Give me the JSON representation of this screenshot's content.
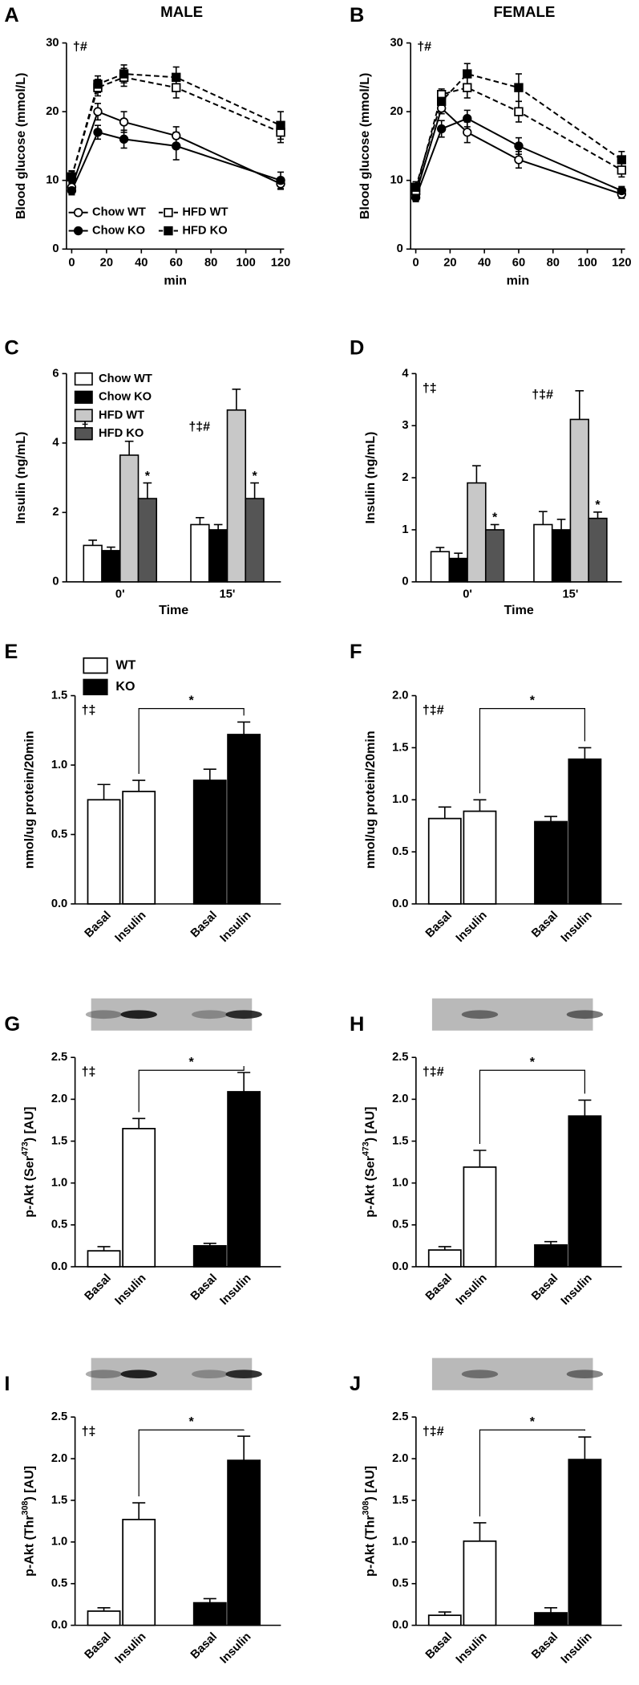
{
  "chart_data": [
    {
      "type": "line",
      "panel_label": "A",
      "title": "MALE",
      "ylabel": "Blood glucose (mmol/L)",
      "xlabel": "min",
      "annotation": "†#",
      "x": [
        0,
        15,
        30,
        60,
        120
      ],
      "xlim": [
        -3,
        122
      ],
      "xticks": [
        0,
        20,
        40,
        60,
        80,
        100,
        120
      ],
      "ylim": [
        0,
        30
      ],
      "yticks": [
        0,
        10,
        20,
        30
      ],
      "legend": "lower center",
      "series": [
        {
          "name": "Chow WT",
          "color": "#000000",
          "marker": "circle",
          "filled": false,
          "line_style": "solid",
          "values": [
            9,
            20,
            18.5,
            16.5,
            9.5
          ],
          "errors": [
            0.8,
            1.2,
            1.5,
            1.3,
            0.8
          ]
        },
        {
          "name": "Chow KO",
          "color": "#000000",
          "marker": "circle",
          "filled": true,
          "line_style": "solid",
          "values": [
            8.5,
            17,
            16,
            15,
            10
          ],
          "errors": [
            0.6,
            1.0,
            1.3,
            2.0,
            1.2
          ]
        },
        {
          "name": "HFD WT",
          "color": "#000000",
          "marker": "square",
          "filled": false,
          "line_style": "dashed",
          "values": [
            10.5,
            23.5,
            25,
            23.5,
            17
          ],
          "errors": [
            0.9,
            1.2,
            1.3,
            1.5,
            1.5
          ]
        },
        {
          "name": "HFD KO",
          "color": "#000000",
          "marker": "square",
          "filled": true,
          "line_style": "dashed",
          "values": [
            10.5,
            24,
            25.5,
            25,
            18
          ],
          "errors": [
            0.8,
            1.2,
            1.3,
            1.5,
            2.0
          ]
        }
      ]
    },
    {
      "type": "line",
      "panel_label": "B",
      "title": "FEMALE",
      "ylabel": "Blood glucose (mmol/L)",
      "xlabel": "min",
      "annotation": "†#",
      "x": [
        0,
        15,
        30,
        60,
        120
      ],
      "xlim": [
        -3,
        122
      ],
      "xticks": [
        0,
        20,
        40,
        60,
        80,
        100,
        120
      ],
      "ylim": [
        0,
        30
      ],
      "yticks": [
        0,
        10,
        20,
        30
      ],
      "series": [
        {
          "name": "Chow WT",
          "color": "#000000",
          "marker": "circle",
          "filled": false,
          "line_style": "solid",
          "values": [
            8,
            20.5,
            17,
            13,
            8
          ],
          "errors": [
            0.8,
            0.8,
            1.5,
            1.2,
            0.6
          ]
        },
        {
          "name": "Chow KO",
          "color": "#000000",
          "marker": "circle",
          "filled": true,
          "line_style": "solid",
          "values": [
            7.5,
            17.5,
            19,
            15,
            8.5
          ],
          "errors": [
            0.6,
            1.2,
            1.2,
            1.2,
            0.6
          ]
        },
        {
          "name": "HFD WT",
          "color": "#000000",
          "marker": "square",
          "filled": false,
          "line_style": "dashed",
          "values": [
            8.5,
            22.5,
            23.5,
            20,
            11.5
          ],
          "errors": [
            0.6,
            0.8,
            1.5,
            1.5,
            1.0
          ]
        },
        {
          "name": "HFD KO",
          "color": "#000000",
          "marker": "square",
          "filled": true,
          "line_style": "dashed",
          "values": [
            9,
            21.5,
            25.5,
            23.5,
            13
          ],
          "errors": [
            0.8,
            1.0,
            1.5,
            2.0,
            1.2
          ]
        }
      ]
    },
    {
      "type": "grouped_bar",
      "panel_label": "C",
      "ylabel": "Insulin (ng/mL)",
      "xlabel": "Time",
      "categories": [
        "0'",
        "15'"
      ],
      "category_annotations": [
        "†",
        "†‡#"
      ],
      "ylim": [
        0,
        6
      ],
      "yticks": [
        0,
        2,
        4,
        6
      ],
      "legend": "upper left",
      "series": [
        {
          "name": "Chow WT",
          "color": "#ffffff",
          "values": [
            1.05,
            1.65
          ],
          "errors": [
            0.15,
            0.2
          ]
        },
        {
          "name": "Chow KO",
          "color": "#000000",
          "values": [
            0.9,
            1.5
          ],
          "errors": [
            0.1,
            0.15
          ]
        },
        {
          "name": "HFD WT",
          "color": "#c8c8c8",
          "values": [
            3.65,
            4.95
          ],
          "errors": [
            0.4,
            0.6
          ]
        },
        {
          "name": "HFD KO",
          "color": "#555555",
          "values": [
            2.4,
            2.4
          ],
          "errors": [
            0.45,
            0.45
          ],
          "significance_marks": [
            "*",
            "*"
          ]
        }
      ]
    },
    {
      "type": "grouped_bar",
      "panel_label": "D",
      "ylabel": "Insulin (ng/mL)",
      "xlabel": "Time",
      "annotation": "†‡",
      "categories": [
        "0'",
        "15'"
      ],
      "category_annotations": [
        null,
        "†‡#"
      ],
      "ylim": [
        0,
        4
      ],
      "yticks": [
        0,
        1,
        2,
        3,
        4
      ],
      "series": [
        {
          "name": "Chow WT",
          "color": "#ffffff",
          "values": [
            0.58,
            1.1
          ],
          "errors": [
            0.08,
            0.25
          ]
        },
        {
          "name": "Chow KO",
          "color": "#000000",
          "values": [
            0.45,
            1.0
          ],
          "errors": [
            0.1,
            0.2
          ]
        },
        {
          "name": "HFD WT",
          "color": "#c8c8c8",
          "values": [
            1.9,
            3.12
          ],
          "errors": [
            0.33,
            0.55
          ]
        },
        {
          "name": "HFD KO",
          "color": "#555555",
          "values": [
            1.0,
            1.22
          ],
          "errors": [
            0.1,
            0.12
          ],
          "significance_marks": [
            "*",
            "*"
          ]
        }
      ]
    },
    {
      "type": "bar",
      "panel_label": "E",
      "ylabel": "nmol/ug protein/20min",
      "annotation": "†‡",
      "bracket_label": "*",
      "categories": [
        "Basal",
        "Insulin",
        "Basal",
        "Insulin"
      ],
      "values": [
        0.75,
        0.81,
        0.89,
        1.22
      ],
      "errors": [
        0.11,
        0.08,
        0.08,
        0.09
      ],
      "colors": [
        "#ffffff",
        "#ffffff",
        "#000000",
        "#000000"
      ],
      "legend": [
        {
          "name": "WT",
          "color": "#ffffff"
        },
        {
          "name": "KO",
          "color": "#000000"
        }
      ],
      "ylim": [
        0,
        1.5
      ],
      "yticks": [
        {
          "value": 0,
          "label": "0.0"
        },
        0.5,
        {
          "value": 1,
          "label": "1.0"
        },
        1.5
      ]
    },
    {
      "type": "bar",
      "panel_label": "F",
      "ylabel": "nmol/ug protein/20min",
      "annotation": "†‡#",
      "bracket_label": "*",
      "categories": [
        "Basal",
        "Insulin",
        "Basal",
        "Insulin"
      ],
      "values": [
        0.82,
        0.89,
        0.79,
        1.39
      ],
      "errors": [
        0.11,
        0.11,
        0.05,
        0.11
      ],
      "colors": [
        "#ffffff",
        "#ffffff",
        "#000000",
        "#000000"
      ],
      "ylim": [
        0,
        2
      ],
      "yticks": [
        {
          "value": 0,
          "label": "0.0"
        },
        0.5,
        {
          "value": 1,
          "label": "1.0"
        },
        1.5,
        {
          "value": 2,
          "label": "2.0"
        }
      ]
    },
    {
      "type": "bar",
      "panel_label": "G",
      "ylabel_parts": [
        "p-Akt (Ser",
        "473",
        ") [AU]"
      ],
      "annotation": "†‡",
      "bracket_label": "*",
      "categories": [
        "Basal",
        "Insulin",
        "Basal",
        "Insulin"
      ],
      "values": [
        0.19,
        1.65,
        0.25,
        2.09
      ],
      "errors": [
        0.05,
        0.12,
        0.03,
        0.23
      ],
      "colors": [
        "#ffffff",
        "#ffffff",
        "#000000",
        "#000000"
      ],
      "ylim": [
        0,
        2.5
      ],
      "yticks": [
        {
          "value": 0,
          "label": "0.0"
        },
        0.5,
        {
          "value": 1,
          "label": "1.0"
        },
        1.5,
        {
          "value": 2,
          "label": "2.0"
        },
        2.5
      ]
    },
    {
      "type": "bar",
      "panel_label": "H",
      "ylabel_parts": [
        "p-Akt (Ser",
        "473",
        ") [AU]"
      ],
      "annotation": "†‡#",
      "bracket_label": "*",
      "categories": [
        "Basal",
        "Insulin",
        "Basal",
        "Insulin"
      ],
      "values": [
        0.2,
        1.19,
        0.26,
        1.8
      ],
      "errors": [
        0.04,
        0.2,
        0.04,
        0.19
      ],
      "colors": [
        "#ffffff",
        "#ffffff",
        "#000000",
        "#000000"
      ],
      "ylim": [
        0,
        2.5
      ],
      "yticks": [
        {
          "value": 0,
          "label": "0.0"
        },
        0.5,
        {
          "value": 1,
          "label": "1.0"
        },
        1.5,
        {
          "value": 2,
          "label": "2.0"
        },
        2.5
      ]
    },
    {
      "type": "bar",
      "panel_label": "I",
      "ylabel_parts": [
        "p-Akt (Thr",
        "308",
        ") [AU]"
      ],
      "annotation": "†‡",
      "bracket_label": "*",
      "categories": [
        "Basal",
        "Insulin",
        "Basal",
        "Insulin"
      ],
      "values": [
        0.17,
        1.27,
        0.27,
        1.98
      ],
      "errors": [
        0.04,
        0.2,
        0.05,
        0.29
      ],
      "colors": [
        "#ffffff",
        "#ffffff",
        "#000000",
        "#000000"
      ],
      "ylim": [
        0,
        2.5
      ],
      "yticks": [
        {
          "value": 0,
          "label": "0.0"
        },
        0.5,
        {
          "value": 1,
          "label": "1.0"
        },
        1.5,
        {
          "value": 2,
          "label": "2.0"
        },
        2.5
      ]
    },
    {
      "type": "bar",
      "panel_label": "J",
      "ylabel_parts": [
        "p-Akt (Thr",
        "308",
        ") [AU]"
      ],
      "annotation": "†‡#",
      "bracket_label": "*",
      "categories": [
        "Basal",
        "Insulin",
        "Basal",
        "Insulin"
      ],
      "values": [
        0.12,
        1.01,
        0.15,
        1.99
      ],
      "errors": [
        0.04,
        0.22,
        0.06,
        0.27
      ],
      "colors": [
        "#ffffff",
        "#ffffff",
        "#000000",
        "#000000"
      ],
      "ylim": [
        0,
        2.5
      ],
      "yticks": [
        {
          "value": 0,
          "label": "0.0"
        },
        0.5,
        {
          "value": 1,
          "label": "1.0"
        },
        1.5,
        {
          "value": 2,
          "label": "2.0"
        },
        2.5
      ]
    }
  ]
}
